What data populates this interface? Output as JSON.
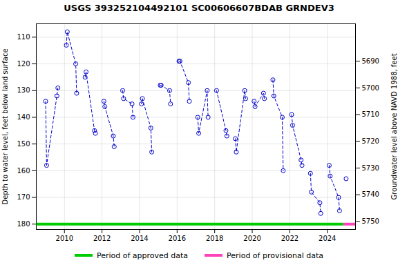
{
  "chart_data": {
    "type": "line",
    "title": "USGS 393252104492101 SC00606607BDAB GRNDEV3",
    "ylabel": "Depth to water level, feet below land surface",
    "y2label": "Groundwater level above NAVD 1988, feet",
    "xlim": [
      2008.5,
      2025.5
    ],
    "xticks": [
      2010,
      2012,
      2014,
      2016,
      2018,
      2020,
      2022,
      2024
    ],
    "ylim": [
      182,
      105
    ],
    "yticks": [
      110,
      120,
      130,
      140,
      150,
      160,
      170,
      180
    ],
    "y2lim": [
      5753,
      5676
    ],
    "y2ticks": [
      5750,
      5740,
      5730,
      5720,
      5710,
      5700,
      5690
    ],
    "grid": true,
    "series": [
      {
        "type": "line",
        "color": "#0000cc",
        "line_style": "dashed",
        "marker": "circle",
        "x": [
          2009.0,
          2009.05,
          2009.6,
          2009.65,
          null,
          2010.1,
          2010.15,
          2010.6,
          2010.65,
          null,
          2011.1,
          2011.15,
          2011.6,
          2011.65,
          null,
          2012.1,
          2012.15,
          2012.6,
          2012.65,
          null,
          2013.1,
          2013.15,
          2013.6,
          2013.65,
          null,
          2014.1,
          2014.15,
          2014.6,
          2014.65,
          null,
          2015.1,
          2015.15,
          2015.6,
          2015.65,
          null,
          2016.1,
          2016.15,
          2016.6,
          2016.65,
          null,
          2017.1,
          2017.15,
          2017.6,
          2017.65,
          null,
          2018.1,
          2018.6,
          2018.65,
          null,
          2019.1,
          2019.15,
          2019.6,
          2019.65,
          null,
          2020.1,
          2020.15,
          2020.6,
          2020.65,
          null,
          2021.1,
          2021.15,
          2021.6,
          2021.65,
          null,
          2022.1,
          2022.15,
          2022.6,
          2022.65,
          null,
          2023.1,
          2023.15,
          2023.6,
          2023.65,
          null,
          2024.1,
          2024.15,
          2024.6,
          2024.65,
          null,
          2025.0
        ],
        "values": [
          134,
          158,
          132,
          129,
          null,
          113,
          108,
          120,
          131,
          null,
          125,
          123,
          145,
          146,
          null,
          134,
          136,
          147,
          151,
          null,
          130,
          133,
          135,
          140,
          null,
          135,
          133,
          144,
          153,
          null,
          128,
          128,
          130,
          135,
          null,
          119,
          119,
          127,
          134,
          null,
          140,
          146,
          130,
          140,
          null,
          130,
          145,
          147,
          null,
          148,
          153,
          130,
          133,
          null,
          134,
          136,
          131,
          133,
          null,
          126,
          132,
          140,
          160,
          null,
          139,
          143,
          156,
          158,
          null,
          161,
          168,
          172,
          176,
          null,
          158,
          162,
          170,
          175,
          null,
          163
        ]
      },
      {
        "name": "Period of approved data",
        "type": "line",
        "color": "#00cc00",
        "line_style": "solid",
        "x": [
          2008.5,
          2024.85
        ],
        "values": [
          180,
          180
        ]
      },
      {
        "name": "Period of provisional data",
        "type": "line",
        "color": "#ff44bb",
        "line_style": "solid",
        "x": [
          2024.85,
          2025.5
        ],
        "values": [
          180,
          180
        ]
      }
    ]
  }
}
